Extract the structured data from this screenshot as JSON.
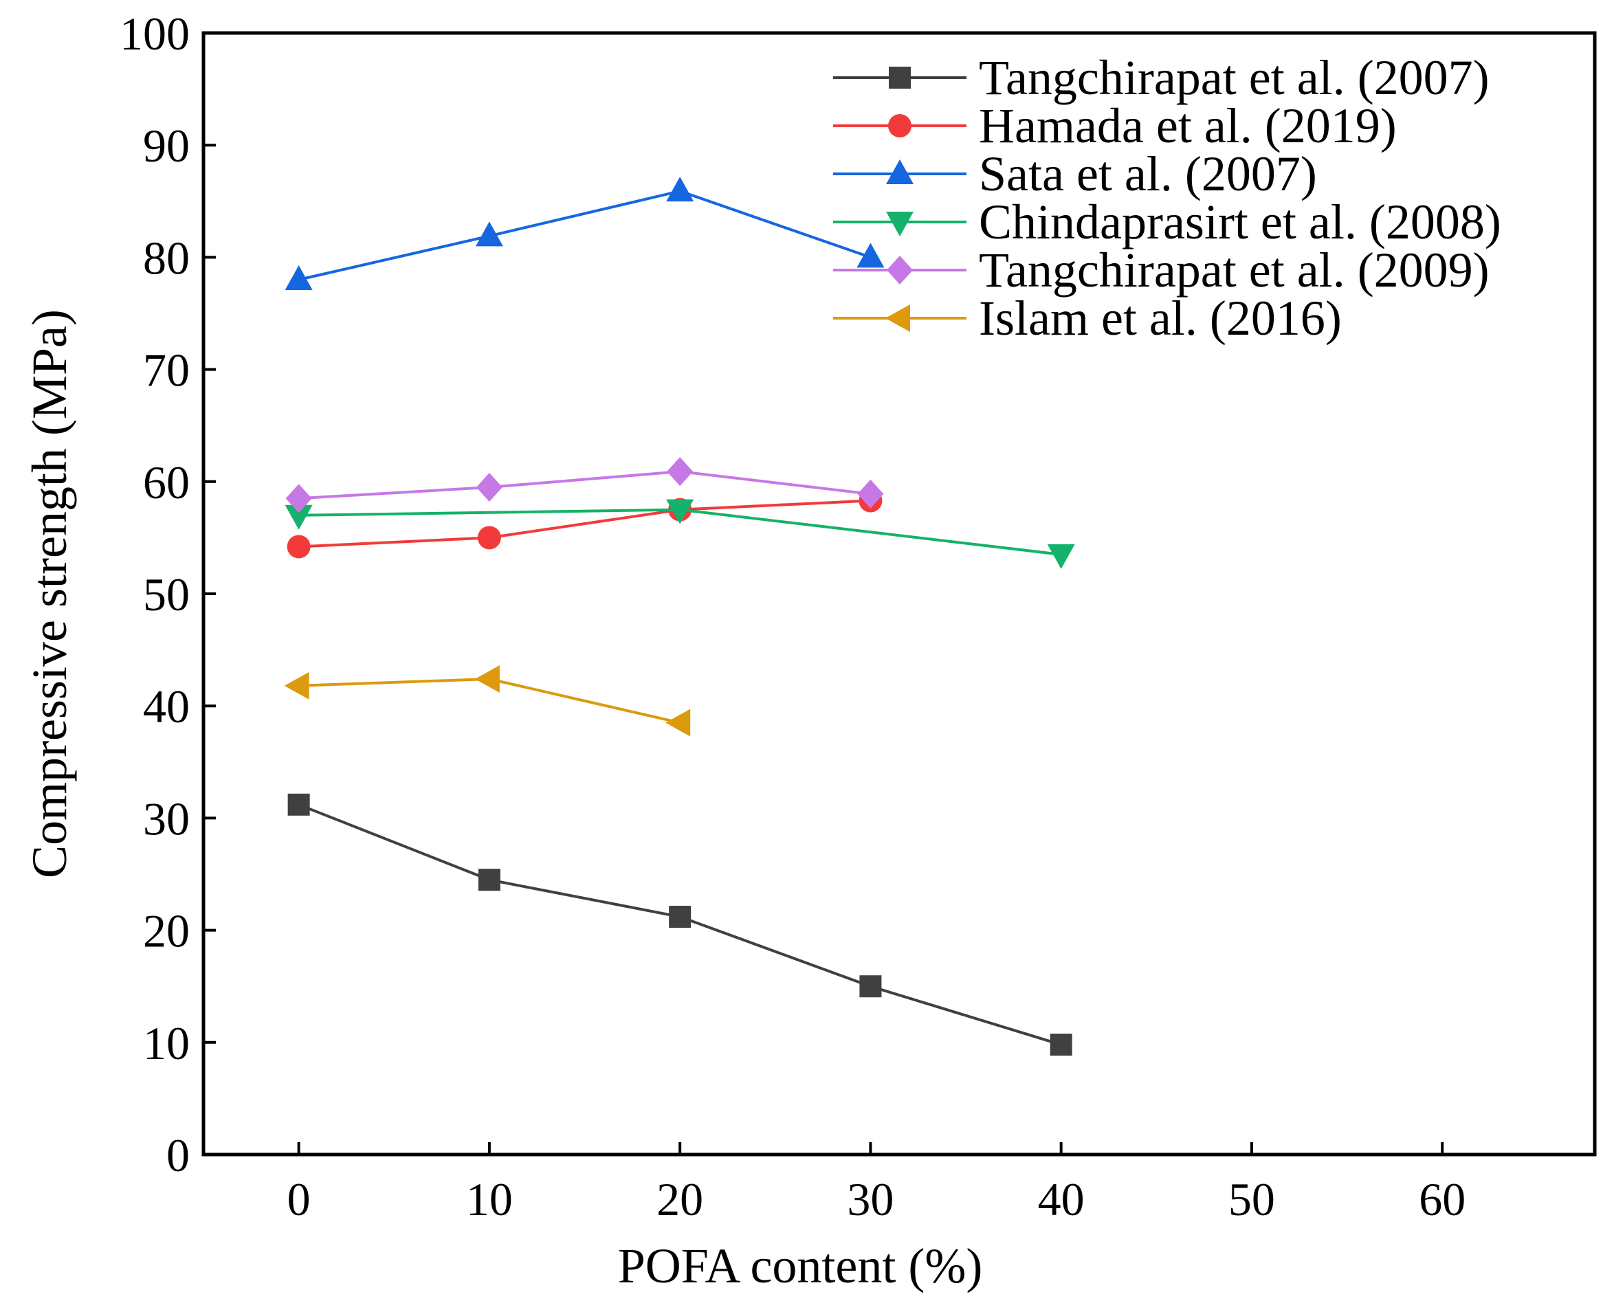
{
  "chart_data": {
    "type": "line",
    "xlabel": "POFA content (%)",
    "ylabel": "Compressive strength (MPa)",
    "xlim": [
      -5,
      68
    ],
    "ylim": [
      0,
      100
    ],
    "x_ticks": [
      "0",
      "10",
      "20",
      "30",
      "40",
      "50",
      "60"
    ],
    "y_ticks": [
      "0",
      "10",
      "20",
      "30",
      "40",
      "50",
      "60",
      "70",
      "80",
      "90",
      "100"
    ],
    "legend_position": "top-right",
    "grid": false,
    "series": [
      {
        "name": "Tangchirapat et al. (2007)",
        "color": "#404040",
        "marker": "square",
        "points": [
          [
            0,
            31.2
          ],
          [
            10,
            24.5
          ],
          [
            20,
            21.2
          ],
          [
            30,
            15.0
          ],
          [
            40,
            9.8
          ]
        ]
      },
      {
        "name": "Hamada et al. (2019)",
        "color": "#f23a3a",
        "marker": "circle",
        "points": [
          [
            0,
            54.2
          ],
          [
            10,
            55.0
          ],
          [
            20,
            57.5
          ],
          [
            30,
            58.3
          ]
        ]
      },
      {
        "name": "Sata et al. (2007)",
        "color": "#1666e0",
        "marker": "triangle-up",
        "points": [
          [
            0,
            78.0
          ],
          [
            10,
            81.9
          ],
          [
            20,
            85.9
          ],
          [
            30,
            80.0
          ]
        ]
      },
      {
        "name": "Chindaprasirt et al. (2008)",
        "color": "#14b26a",
        "marker": "triangle-down",
        "points": [
          [
            0,
            57.0
          ],
          [
            20,
            57.5
          ],
          [
            40,
            53.5
          ]
        ]
      },
      {
        "name": "Tangchirapat et al. (2009)",
        "color": "#c678e6",
        "marker": "diamond",
        "points": [
          [
            0,
            58.5
          ],
          [
            10,
            59.5
          ],
          [
            20,
            60.9
          ],
          [
            30,
            58.9
          ]
        ]
      },
      {
        "name": "Islam et al. (2016)",
        "color": "#dc9a0c",
        "marker": "triangle-left",
        "points": [
          [
            0,
            41.8
          ],
          [
            10,
            42.4
          ],
          [
            20,
            38.5
          ]
        ]
      }
    ]
  }
}
